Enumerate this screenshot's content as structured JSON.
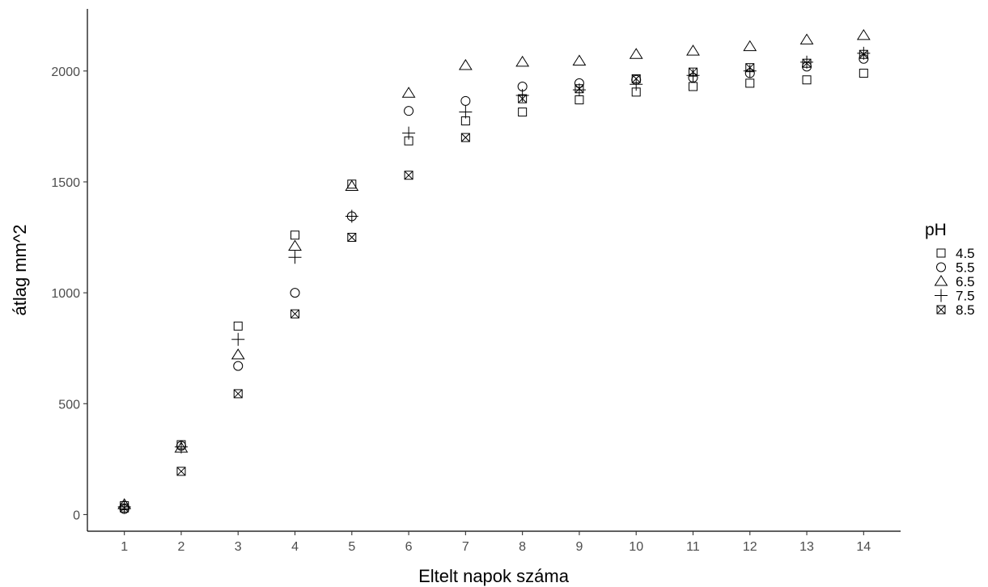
{
  "chart_data": {
    "type": "scatter",
    "xlabel": "Eltelt napok száma",
    "ylabel": "átlag mm^2",
    "x": [
      1,
      2,
      3,
      4,
      5,
      6,
      7,
      8,
      9,
      10,
      11,
      12,
      13,
      14
    ],
    "xlim": [
      0.35,
      14.65
    ],
    "ylim": [
      -75,
      2280
    ],
    "xticks": [
      "1",
      "2",
      "3",
      "4",
      "5",
      "6",
      "7",
      "8",
      "9",
      "10",
      "11",
      "12",
      "13",
      "14"
    ],
    "yticks": [
      0,
      500,
      1000,
      1500,
      2000
    ],
    "ytick_labels": [
      "0",
      "500",
      "1000",
      "1500",
      "2000"
    ],
    "grid": false,
    "legend": {
      "title": "pH",
      "position": "right"
    },
    "series": [
      {
        "name": "4.5",
        "shape": "square",
        "values": [
          40,
          315,
          850,
          1260,
          1490,
          1685,
          1775,
          1815,
          1870,
          1905,
          1930,
          1945,
          1960,
          1990
        ]
      },
      {
        "name": "5.5",
        "shape": "circle",
        "values": [
          25,
          310,
          670,
          1000,
          1345,
          1820,
          1865,
          1930,
          1945,
          1960,
          1970,
          1990,
          2020,
          2055
        ]
      },
      {
        "name": "6.5",
        "shape": "triangle",
        "values": [
          45,
          300,
          720,
          1210,
          1480,
          1900,
          2025,
          2040,
          2045,
          2075,
          2090,
          2110,
          2140,
          2160
        ]
      },
      {
        "name": "7.5",
        "shape": "plus",
        "values": [
          35,
          305,
          790,
          1160,
          1345,
          1720,
          1815,
          1890,
          1915,
          1940,
          1980,
          2000,
          2040,
          2080
        ]
      },
      {
        "name": "8.5",
        "shape": "square-x",
        "values": [
          30,
          195,
          545,
          905,
          1250,
          1530,
          1700,
          1875,
          1920,
          1965,
          1995,
          2015,
          2035,
          2075
        ]
      }
    ]
  }
}
